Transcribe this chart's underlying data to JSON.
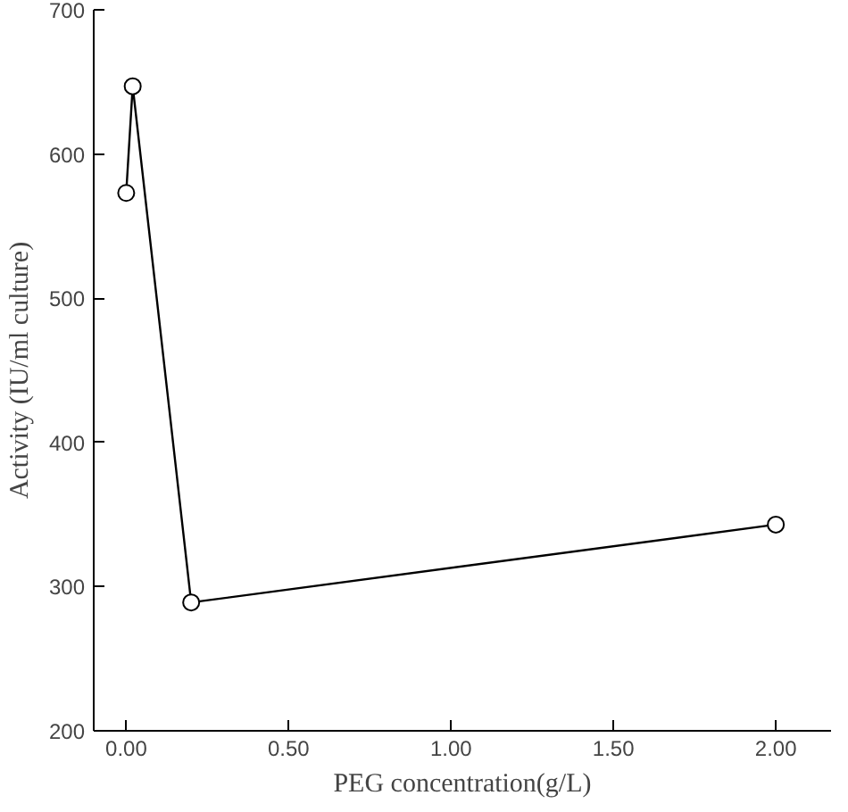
{
  "chart_data": {
    "type": "line",
    "xlabel": "PEG concentration(g/L)",
    "ylabel": "Activity (IU/ml culture)",
    "x": [
      0,
      0.02,
      0.2,
      2.0
    ],
    "values": [
      573,
      647,
      289,
      343
    ],
    "color": "#000000",
    "marker": "circle",
    "line_style": "solid",
    "xlim": [
      -0.1,
      2.17
    ],
    "ylim": [
      200,
      700
    ],
    "xticks": [
      {
        "value": 0,
        "label": "0.00"
      },
      {
        "value": 0.5,
        "label": "0.50"
      },
      {
        "value": 1,
        "label": "1.00"
      },
      {
        "value": 1.5,
        "label": "1.50"
      },
      {
        "value": 2,
        "label": "2.00"
      }
    ],
    "yticks": [
      200,
      300,
      400,
      500,
      600,
      700
    ],
    "grid": false
  }
}
